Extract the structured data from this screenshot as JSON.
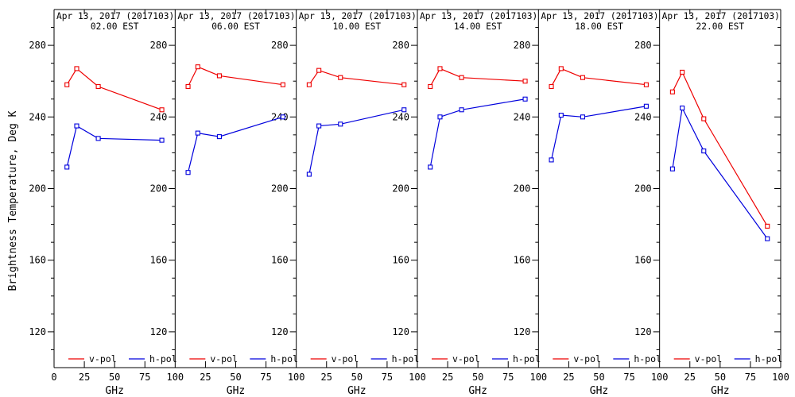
{
  "chart_data": {
    "type": "line",
    "title": "",
    "ylabel": "Brightness Temperature, Deg K",
    "xlabel": "GHz",
    "x": [
      10.65,
      18.7,
      36.5,
      89
    ],
    "xlim": [
      0,
      100
    ],
    "ylim": [
      100,
      300
    ],
    "xticks": [
      0,
      25,
      50,
      75,
      100
    ],
    "yticks": [
      120,
      160,
      200,
      240,
      280
    ],
    "y_minor_step": 10,
    "grid": false,
    "legend_position": "bottom-inside-each-panel",
    "legend": [
      {
        "name": "v-pol",
        "color": "#ee0000"
      },
      {
        "name": "h-pol",
        "color": "#0000dd"
      }
    ],
    "colors": {
      "v_pol": "#ee0000",
      "h_pol": "#0000dd",
      "axis": "#000000",
      "background": "#ffffff"
    },
    "panels": [
      {
        "title": "Apr 13, 2017 (2017103)",
        "time": "02.00 EST",
        "series": [
          {
            "name": "v-pol",
            "values": [
              258,
              267,
              257,
              244
            ]
          },
          {
            "name": "h-pol",
            "values": [
              212,
              235,
              228,
              227
            ]
          }
        ]
      },
      {
        "title": "Apr 13, 2017 (2017103)",
        "time": "06.00 EST",
        "series": [
          {
            "name": "v-pol",
            "values": [
              257,
              268,
              263,
              258
            ]
          },
          {
            "name": "h-pol",
            "values": [
              209,
              231,
              229,
              240
            ]
          }
        ]
      },
      {
        "title": "Apr 13, 2017 (2017103)",
        "time": "10.00 EST",
        "series": [
          {
            "name": "v-pol",
            "values": [
              258,
              266,
              262,
              258
            ]
          },
          {
            "name": "h-pol",
            "values": [
              208,
              235,
              236,
              244
            ]
          }
        ]
      },
      {
        "title": "Apr 13, 2017 (2017103)",
        "time": "14.00 EST",
        "series": [
          {
            "name": "v-pol",
            "values": [
              257,
              267,
              262,
              260
            ]
          },
          {
            "name": "h-pol",
            "values": [
              212,
              240,
              244,
              250
            ]
          }
        ]
      },
      {
        "title": "Apr 13, 2017 (2017103)",
        "time": "18.00 EST",
        "series": [
          {
            "name": "v-pol",
            "values": [
              257,
              267,
              262,
              258
            ]
          },
          {
            "name": "h-pol",
            "values": [
              216,
              241,
              240,
              246
            ]
          }
        ]
      },
      {
        "title": "Apr 13, 2017 (2017103)",
        "time": "22.00 EST",
        "series": [
          {
            "name": "v-pol",
            "values": [
              254,
              265,
              239,
              179
            ]
          },
          {
            "name": "h-pol",
            "values": [
              211,
              245,
              221,
              172
            ]
          }
        ]
      }
    ]
  }
}
